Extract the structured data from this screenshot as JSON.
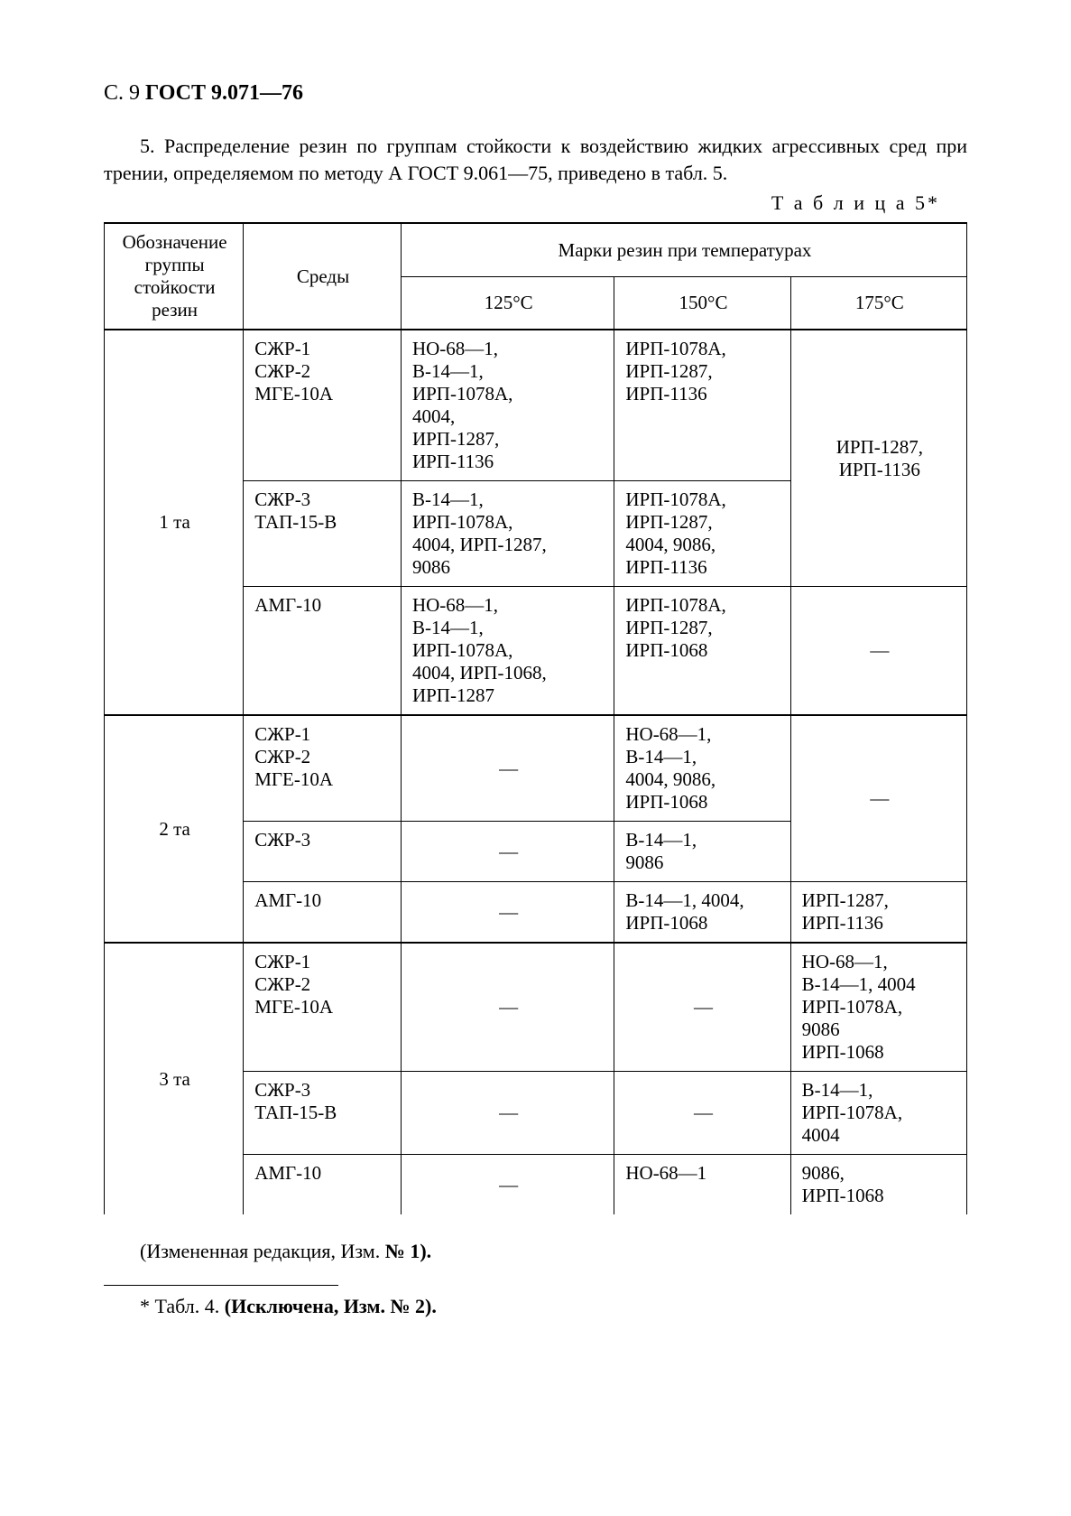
{
  "page_header": {
    "left": "С. 9",
    "bold": "ГОСТ 9.071—76"
  },
  "paragraph": "5. Распределение резин по группам стойкости к воздействию жидких агрессивных сред при трении, определяемом по методу А ГОСТ 9.061—75, приведено в табл. 5.",
  "table_caption": "Т а б л и ц а  5*",
  "table": {
    "head": {
      "group": "Обозначение группы стойкости резин",
      "sredy": "Среды",
      "marks": "Марки резин при температурах",
      "t125": "125°С",
      "t150": "150°С",
      "t175": "175°С"
    },
    "groups": [
      {
        "label": "1 та",
        "rows": [
          {
            "sredy": "СЖР-1\nСЖР-2\nМГЕ-10А",
            "t125": "НО-68—1,\nВ-14—1,\nИРП-1078А,\n4004,\nИРП-1287,\nИРП-1136",
            "t150": "ИРП-1078А,\nИРП-1287,\nИРП-1136",
            "t175": "ИРП-1287,\nИРП-1136",
            "t175_rowspan": 2
          },
          {
            "sredy": "СЖР-3\nТАП-15-В",
            "t125": "В-14—1,\nИРП-1078А,\n4004, ИРП-1287,\n9086",
            "t150": "ИРП-1078А,\nИРП-1287,\n4004, 9086,\nИРП-1136"
          },
          {
            "sredy": "АМГ-10",
            "t125": "НО-68—1,\nВ-14—1,\nИРП-1078А,\n4004, ИРП-1068,\nИРП-1287",
            "t150": "ИРП-1078А,\nИРП-1287,\nИРП-1068",
            "t175": "—",
            "t175_dash": true
          }
        ]
      },
      {
        "label": "2 та",
        "rows": [
          {
            "sredy": "СЖР-1\nСЖР-2\nМГЕ-10А",
            "t125": "—",
            "t125_dash": true,
            "t150": "НО-68—1,\nВ-14—1,\n4004, 9086,\nИРП-1068",
            "t175": "—",
            "t175_dash": true,
            "t175_rowspan": 2
          },
          {
            "sredy": "СЖР-3",
            "t125": "—",
            "t125_dash": true,
            "t150": "В-14—1,\n9086"
          },
          {
            "sredy": "АМГ-10",
            "t125": "—",
            "t125_dash": true,
            "t150": "В-14—1, 4004,\nИРП-1068",
            "t175": "ИРП-1287,\nИРП-1136"
          }
        ]
      },
      {
        "label": "3 та",
        "rows": [
          {
            "sredy": "СЖР-1\nСЖР-2\nМГЕ-10А",
            "t125": "—",
            "t125_dash": true,
            "t150": "—",
            "t150_dash": true,
            "t175": "НО-68—1,\nВ-14—1, 4004\nИРП-1078А,\n9086\nИРП-1068"
          },
          {
            "sredy": "СЖР-3\nТАП-15-В",
            "t125": "—",
            "t125_dash": true,
            "t150": "—",
            "t150_dash": true,
            "t175": "В-14—1,\nИРП-1078А,\n4004"
          },
          {
            "sredy": "АМГ-10",
            "t125": "—",
            "t125_dash": true,
            "t150": "НО-68—1",
            "t175": "9086,\nИРП-1068"
          }
        ]
      }
    ]
  },
  "after_text_plain": "(Измененная редакция, Изм. ",
  "after_text_bold": "№ 1).",
  "footnote_plain": "* Табл. 4. ",
  "footnote_bold": "(Исключена, Изм. № 2)."
}
